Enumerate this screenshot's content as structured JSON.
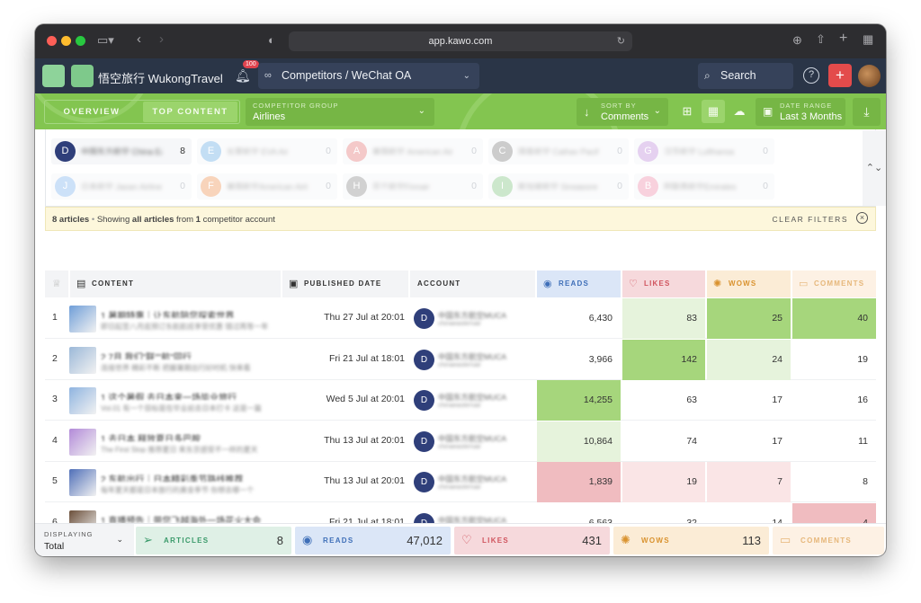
{
  "browser": {
    "url": "app.kawo.com"
  },
  "header": {
    "brand": "悟空旅行 WukongTravel",
    "notif_badge": "100",
    "competitor_select": "Competitors / WeChat OA",
    "search": "Search",
    "help_icon": "?",
    "add_icon": "+"
  },
  "toolbar": {
    "tab_overview": "OVERVIEW",
    "tab_top": "TOP CONTENT",
    "group_label": "COMPETITOR GROUP",
    "group_value": "Airlines",
    "sort_label": "SORT BY",
    "sort_value": "Comments",
    "date_label": "DATE RANGE",
    "date_value": "Last 3 Months"
  },
  "accounts": [
    {
      "initial": "D",
      "name": "中国东方航空 China Eastern",
      "count": "8",
      "color": "#2f3f7a",
      "selected": true
    },
    {
      "initial": "E",
      "name": "长荣航空 EVA Air",
      "count": "0",
      "color": "#7cb7e8",
      "selected": false
    },
    {
      "initial": "A",
      "name": "美国航空 American Airlines",
      "count": "0",
      "color": "#e88a8a",
      "selected": false
    },
    {
      "initial": "C",
      "name": "国泰航空 Cathay Pacific",
      "count": "0",
      "color": "#8f8f8f",
      "selected": false
    },
    {
      "initial": "G",
      "name": "汉莎航空 Lufthansa",
      "count": "0",
      "color": "#c69be0",
      "selected": false
    },
    {
      "initial": "J",
      "name": "日本航空 Japan Airlines",
      "count": "0",
      "color": "#8fbdf0",
      "selected": false
    },
    {
      "initial": "F",
      "name": "美国航空American Airlines",
      "count": "0",
      "color": "#f0a16b",
      "selected": false
    },
    {
      "initial": "H",
      "name": "芬兰航空Finnair",
      "count": "0",
      "color": "#9a9a9a",
      "selected": false
    },
    {
      "initial": "I",
      "name": "新加坡航空 Singapore",
      "count": "0",
      "color": "#8fcc8f",
      "selected": false
    },
    {
      "initial": "B",
      "name": "阿联酋航空Emirates",
      "count": "0",
      "color": "#f09ab5",
      "selected": false
    }
  ],
  "info": {
    "count_text": "8 articles",
    "sep": "•",
    "showing_pre": "Showing",
    "showing_bold": "all articles",
    "showing_mid": "from",
    "showing_num": "1",
    "showing_post": "competitor account",
    "clear": "CLEAR FILTERS"
  },
  "table": {
    "headers": {
      "content": "CONTENT",
      "published": "PUBLISHED DATE",
      "account": "ACCOUNT",
      "reads": "READS",
      "likes": "LIKES",
      "wows": "WOWS",
      "comments": "COMMENTS"
    },
    "rows": [
      {
        "rank": "1",
        "title": "1 暑期特惠｜让东航陪您探索世界",
        "desc": "即日起至八月底预订东航航班享受优惠 错过再等一年",
        "date": "Thu 27 Jul at 20:01",
        "account_initial": "D",
        "account": "中国东方航空MUCA",
        "account_sub": "chinaeasternair",
        "reads": "6,430",
        "likes": "83",
        "wows": "25",
        "comments": "40",
        "thumb": "#6f9ed8"
      },
      {
        "rank": "2",
        "title": "2 7月,我们\"联\"\"航\"同行",
        "desc": "连接世界 精彩不断 把握暑期出行好时机 快来看",
        "date": "Fri 21 Jul at 18:01",
        "account_initial": "D",
        "account": "中国东方航空MUCA",
        "account_sub": "chinaeasternair",
        "reads": "3,966",
        "likes": "142",
        "wows": "24",
        "comments": "19",
        "thumb": "#9bb8d8"
      },
      {
        "rank": "3",
        "title": "1 这个暑假,去日本来一场毕业旅行",
        "desc": "Vol.01 有一个目标是在毕业前去日本打卡 这是一篇",
        "date": "Wed 5 Jul at 20:01",
        "account_initial": "D",
        "account": "中国东方航空MUCA",
        "account_sub": "chinaeasternair",
        "reads": "14,255",
        "likes": "63",
        "wows": "17",
        "comments": "16",
        "thumb": "#8fb4e0"
      },
      {
        "rank": "4",
        "title": "1 去日本,释放夏日多巴胺",
        "desc": "The First Stop 推荐夏日 来东京感受不一样的夏天",
        "date": "Thu 13 Jul at 20:01",
        "account_initial": "D",
        "account": "中国东方航空MUCA",
        "account_sub": "chinaeasternair",
        "reads": "10,864",
        "likes": "74",
        "wows": "17",
        "comments": "11",
        "thumb": "#b28ad8"
      },
      {
        "rank": "5",
        "title": "2 东航出行｜日本精彩季节路线推荐",
        "desc": "每年夏天都是日本旅行的黄金季节 你想去哪一个",
        "date": "Thu 13 Jul at 20:01",
        "account_initial": "D",
        "account": "中国东方航空MUCA",
        "account_sub": "chinaeasternair",
        "reads": "1,839",
        "likes": "19",
        "wows": "7",
        "comments": "8",
        "thumb": "#4f6fb8"
      },
      {
        "rank": "6",
        "title": "1 直播预告｜带您飞越海外一场花火大会",
        "desc": "直播预告 Travel 东航带您前往花火大会现场",
        "date": "Fri 21 Jul at 18:01",
        "account_initial": "D",
        "account": "中国东方航空MUCA",
        "account_sub": "chinaeasternair",
        "reads": "6,563",
        "likes": "32",
        "wows": "14",
        "comments": "4",
        "thumb": "#6b4f3a"
      }
    ]
  },
  "footer": {
    "display_label": "DISPLAYING",
    "display_value": "Total",
    "articles_label": "ARTICLES",
    "articles_value": "8",
    "reads_label": "READS",
    "reads_value": "47,012",
    "likes_label": "LIKES",
    "likes_value": "431",
    "wows_label": "WOWS",
    "wows_value": "113",
    "comments_label": "COMMENTS"
  },
  "colors": {
    "green_bar": "#83c550",
    "header_bg": "#2a3547",
    "reads_bg": "#dbe6f7",
    "likes_bg": "#f6d9dc",
    "wows_bg": "#fbecd6",
    "comments_bg": "#fdf1e4",
    "heat_green_strong": "#a6d67c",
    "heat_green_light": "#e6f3dc",
    "heat_red_strong": "#f0bcc0",
    "heat_red_light": "#fae5e6"
  }
}
